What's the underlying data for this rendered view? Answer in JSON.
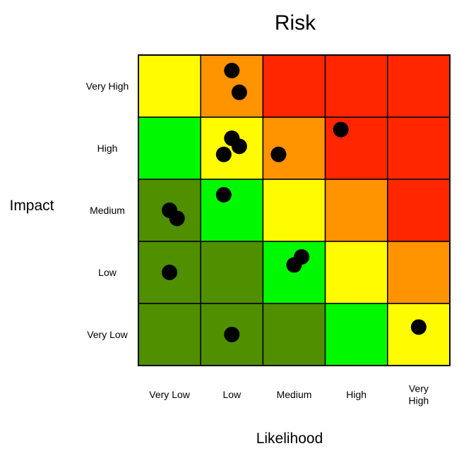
{
  "chart_data": {
    "type": "heatmap",
    "title": "Risk",
    "xlabel": "Likelihood",
    "ylabel": "Impact",
    "x_categories": [
      "Very Low",
      "Low",
      "Medium",
      "High",
      "Very High"
    ],
    "y_categories": [
      "Very Low",
      "Low",
      "Medium",
      "High",
      "Very High"
    ],
    "x_tick_labels": [
      [
        "Very Low"
      ],
      [
        "Low"
      ],
      [
        "Medium"
      ],
      [
        "High"
      ],
      [
        "Very",
        "High"
      ]
    ],
    "colors": {
      "dark_green": "#4f8f00",
      "green": "#00f900",
      "yellow": "#fffb00",
      "orange": "#ff9300",
      "red": "#ff2600",
      "point": "#000000"
    },
    "cell_colors": [
      [
        "dark_green",
        "dark_green",
        "dark_green",
        "green",
        "yellow"
      ],
      [
        "dark_green",
        "dark_green",
        "green",
        "yellow",
        "orange"
      ],
      [
        "dark_green",
        "green",
        "yellow",
        "orange",
        "red"
      ],
      [
        "green",
        "yellow",
        "orange",
        "red",
        "red"
      ],
      [
        "yellow",
        "orange",
        "red",
        "red",
        "red"
      ]
    ],
    "points": [
      {
        "x": 1.5,
        "y": 4.75
      },
      {
        "x": 1.62,
        "y": 4.4
      },
      {
        "x": 1.5,
        "y": 3.66
      },
      {
        "x": 1.62,
        "y": 3.53
      },
      {
        "x": 1.37,
        "y": 3.4
      },
      {
        "x": 2.25,
        "y": 3.4
      },
      {
        "x": 3.25,
        "y": 3.8
      },
      {
        "x": 1.37,
        "y": 2.75
      },
      {
        "x": 0.5,
        "y": 2.5
      },
      {
        "x": 0.62,
        "y": 2.37
      },
      {
        "x": 2.62,
        "y": 1.75
      },
      {
        "x": 2.5,
        "y": 1.62
      },
      {
        "x": 0.5,
        "y": 1.5
      },
      {
        "x": 1.5,
        "y": 0.5
      },
      {
        "x": 4.5,
        "y": 0.62
      }
    ],
    "xlim": [
      0,
      5
    ],
    "ylim": [
      0,
      5
    ],
    "grid": true
  }
}
